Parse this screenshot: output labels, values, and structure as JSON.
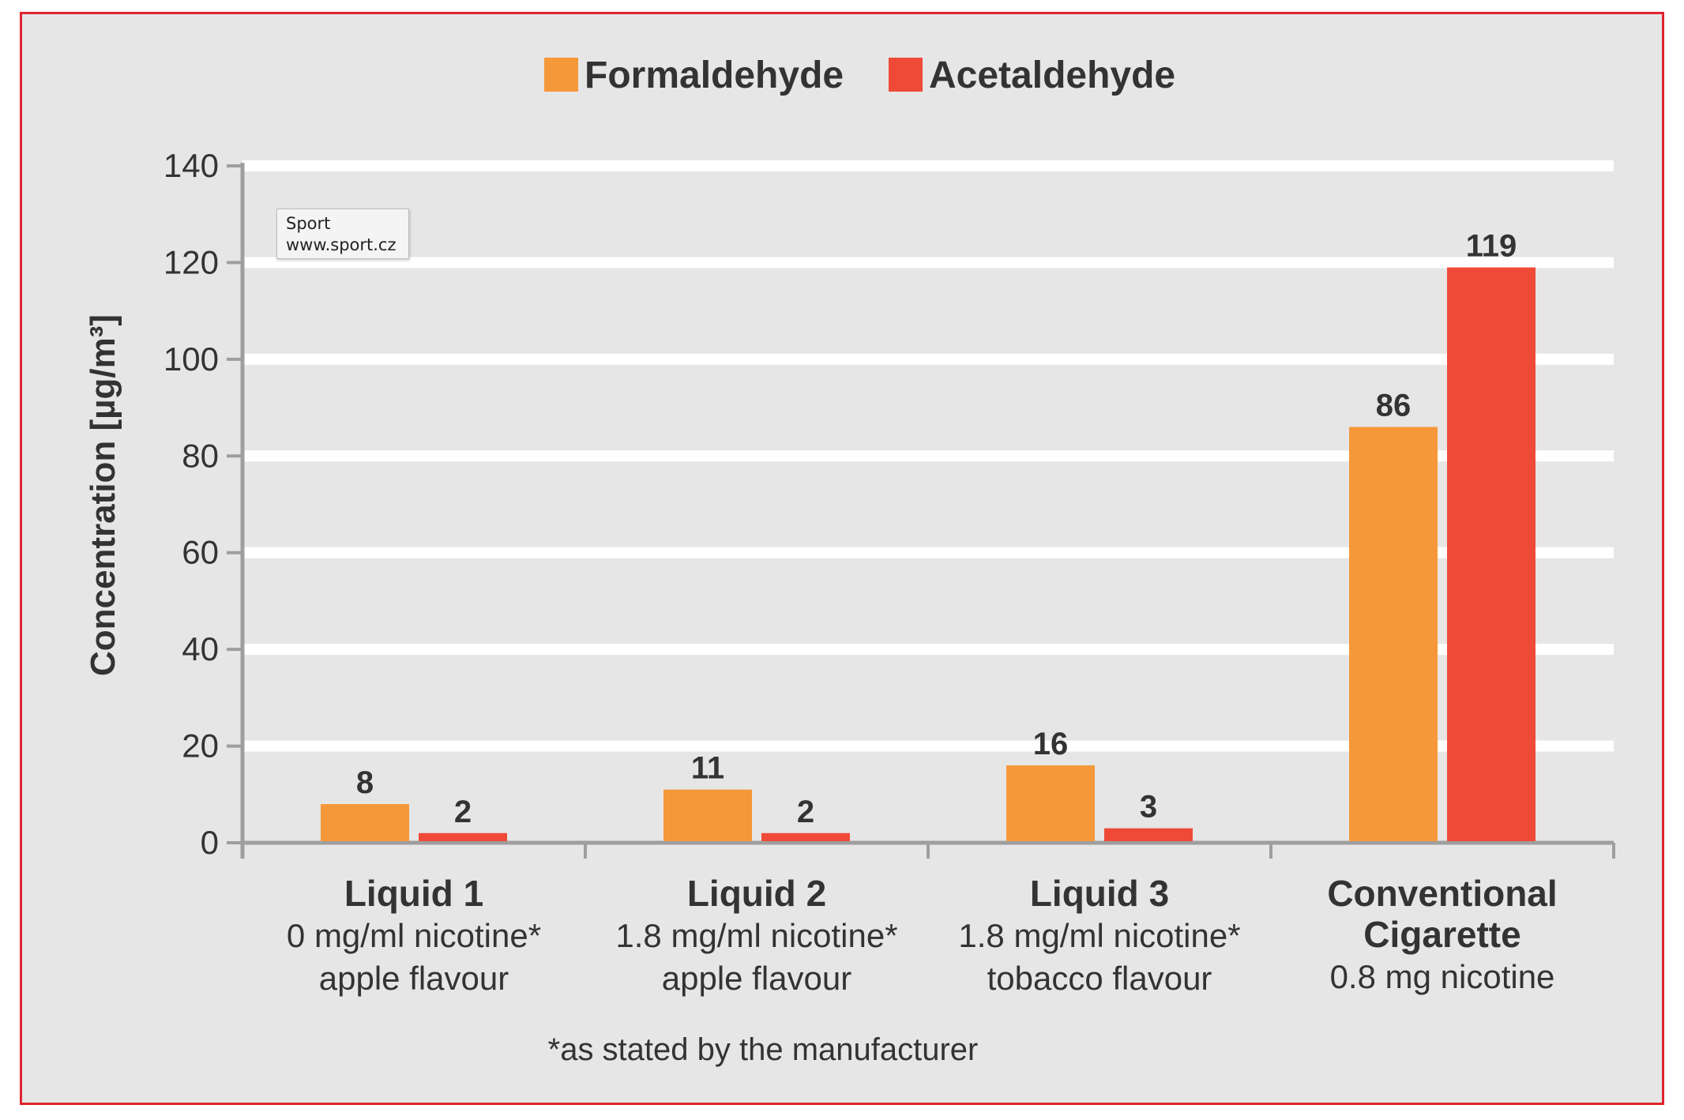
{
  "chart_data": {
    "type": "bar",
    "ylabel": "Concentration [µg/m³]",
    "ylim": [
      0,
      140
    ],
    "yticks": [
      0,
      20,
      40,
      60,
      80,
      100,
      120,
      140
    ],
    "categories": [
      {
        "name": "Liquid 1",
        "lines": [
          "0 mg/ml nicotine*",
          "apple flavour"
        ]
      },
      {
        "name": "Liquid 2",
        "lines": [
          "1.8 mg/ml nicotine*",
          "apple flavour"
        ]
      },
      {
        "name": "Liquid 3",
        "lines": [
          "1.8 mg/ml nicotine*",
          "tobacco flavour"
        ]
      },
      {
        "name": "Conventional Cigarette",
        "name_lines": [
          "Conventional",
          "Cigarette"
        ],
        "lines": [
          "0.8 mg nicotine"
        ]
      }
    ],
    "series": [
      {
        "name": "Formaldehyde",
        "color": "#f5983a",
        "values": [
          8,
          11,
          16,
          86
        ]
      },
      {
        "name": "Acetaldehyde",
        "color": "#ef4a37",
        "values": [
          2,
          2,
          3,
          119
        ]
      }
    ],
    "grid": true,
    "legend_position": "top-center",
    "footnote": "*as stated by the manufacturer"
  },
  "watermark": {
    "line1": "Sport",
    "line2": "www.sport.cz"
  }
}
